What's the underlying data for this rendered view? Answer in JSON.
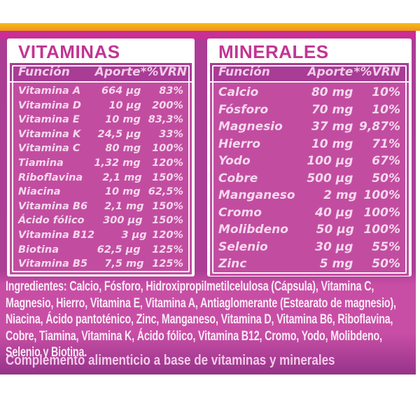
{
  "colors": {
    "accent_yellow": "#F8BB14",
    "accent_magenta": "#C92F94",
    "panel_header_bg": "#A93C95",
    "panel_body_bg": "#C24DA0",
    "title_text": "#C23594",
    "light_text": "#F5D8EE"
  },
  "label": {
    "vitaminas": {
      "title": "VITAMINAS",
      "columns": [
        "Función",
        "Aporte",
        "*%VRN"
      ],
      "rows": [
        [
          "Vitamina A",
          "664 µg",
          "83%"
        ],
        [
          "Vitamina D",
          "10 µg",
          "200%"
        ],
        [
          "Vitamina E",
          "10 mg",
          "83,3%"
        ],
        [
          "Vitamina K",
          "24,5 µg",
          "33%"
        ],
        [
          "Vitamina C",
          "80 mg",
          "100%"
        ],
        [
          "Tiamina",
          "1,32 mg",
          "120%"
        ],
        [
          "Riboflavina",
          "2,1 mg",
          "150%"
        ],
        [
          "Niacina",
          "10 mg",
          "62,5%"
        ],
        [
          "Vitamina B6",
          "2,1 mg",
          "150%"
        ],
        [
          "Ácido fólico",
          "300 µg",
          "150%"
        ],
        [
          "Vitamina B12",
          "3 µg",
          "120%"
        ],
        [
          "Biotina",
          "62,5 µg",
          "125%"
        ],
        [
          "Vitamina B5",
          "7,5 mg",
          "125%"
        ]
      ]
    },
    "minerales": {
      "title": "MINERALES",
      "columns": [
        "Función",
        "Aporte",
        "*%VRN"
      ],
      "rows": [
        [
          "Calcio",
          "80 mg",
          "10%"
        ],
        [
          "Fósforo",
          "70 mg",
          "10%"
        ],
        [
          "Magnesio",
          "37 mg",
          "9,87%"
        ],
        [
          "Hierro",
          "10 mg",
          "71%"
        ],
        [
          "Yodo",
          "100 µg",
          "67%"
        ],
        [
          "Cobre",
          "500 µg",
          "50%"
        ],
        [
          "Manganeso",
          "2 mg",
          "100%"
        ],
        [
          "Cromo",
          "40 µg",
          "100%"
        ],
        [
          "Molibdeno",
          "50 µg",
          "100%"
        ],
        [
          "Selenio",
          "30 µg",
          "55%"
        ],
        [
          "Zinc",
          "5 mg",
          "50%"
        ]
      ]
    },
    "ingredients": "Ingredientes: Calcio, Fósforo, Hidroxipropilmetilcelulosa (Cápsula), Vitamina C, Magnesio, Hierro, Vitamina E, Vitamina A, Antiaglomerante (Estearato de magnesio), Niacina, Ácido pantoténico, Zinc, Manganeso, Vitamina D, Vitamina B6, Riboflavina, Cobre, Tiamina, Vitamina K, Ácido fólico, Vitamina B12, Cromo, Yodo, Molibdeno, Selenio y Biotina.",
    "footer": "Complemento alimenticio a base de vitaminas y minerales"
  }
}
